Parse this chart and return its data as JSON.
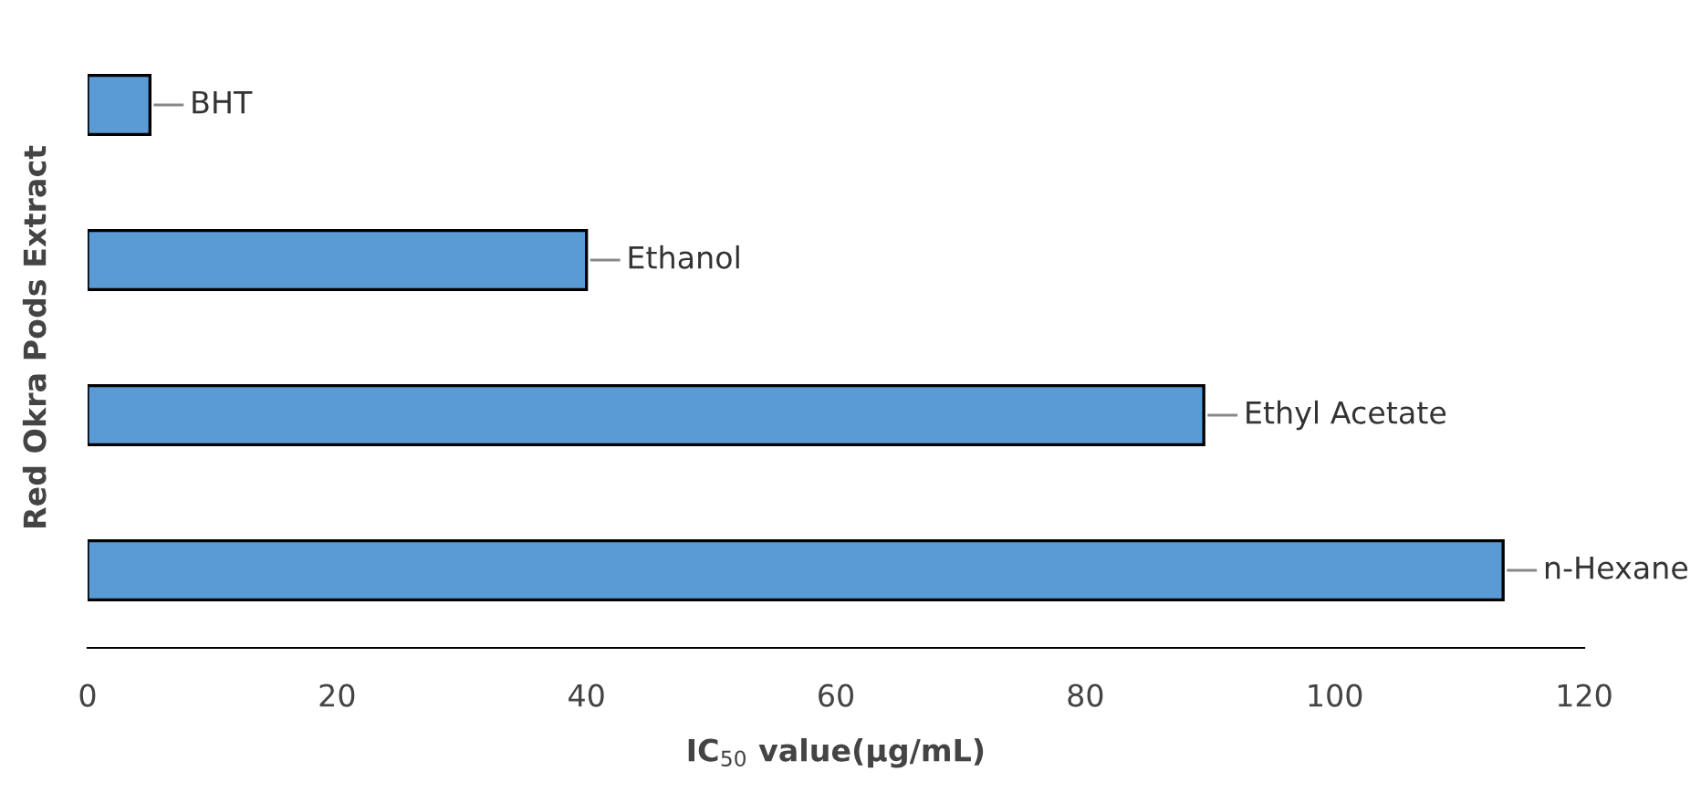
{
  "chart_data": {
    "type": "bar",
    "orientation": "horizontal",
    "categories": [
      "BHT",
      "Ethanol",
      "Ethyl Acetate",
      "n-Hexane"
    ],
    "values": [
      5,
      40,
      89.5,
      113.5
    ],
    "color": "#5b9bd5",
    "xlabel": "IC$_{50}$ value(µg/mL)",
    "ylabel": "Red Okra Pods Extract",
    "xlim": [
      0,
      120
    ],
    "xticks": [
      0,
      20,
      40,
      60,
      80,
      100,
      120
    ],
    "grid": false,
    "legend": false
  }
}
